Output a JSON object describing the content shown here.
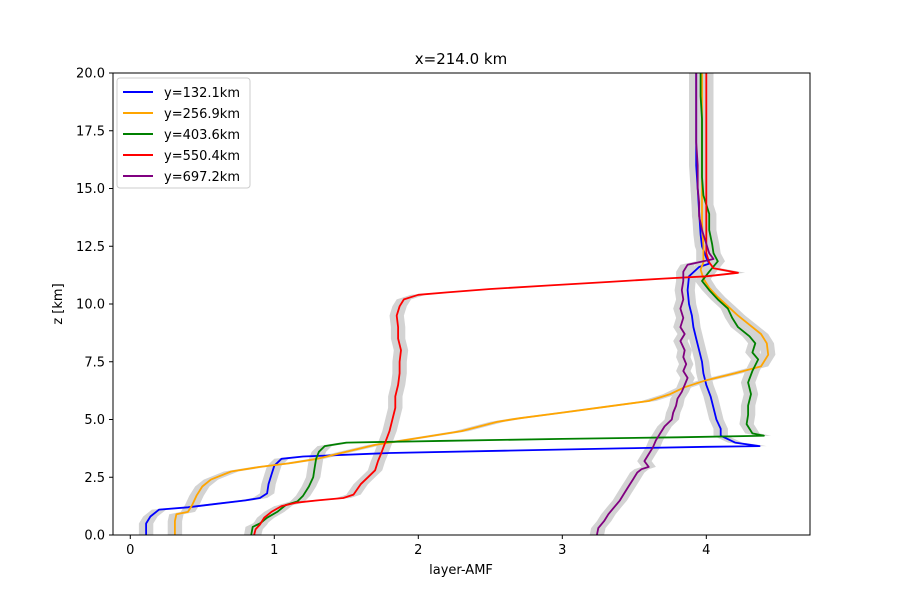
{
  "chart_data": {
    "type": "line",
    "title": "x=214.0 km",
    "xlabel": "layer-AMF",
    "ylabel": "z [km]",
    "xlim": [
      -0.12,
      4.72
    ],
    "ylim": [
      0,
      20
    ],
    "xticks": [
      0,
      1,
      2,
      3,
      4
    ],
    "yticks": [
      0.0,
      2.5,
      5.0,
      7.5,
      10.0,
      12.5,
      15.0,
      17.5,
      20.0
    ],
    "xtick_labels": [
      "0",
      "1",
      "2",
      "3",
      "4"
    ],
    "ytick_labels": [
      "0.0",
      "2.5",
      "5.0",
      "7.5",
      "10.0",
      "12.5",
      "15.0",
      "17.5",
      "20.0"
    ],
    "grid": false,
    "legend_position": "top-left",
    "uncertainty_band_color": "#d3d3d3",
    "series": [
      {
        "name": "y=132.1km",
        "color": "#0000ff",
        "points": [
          [
            0.11,
            0.0
          ],
          [
            0.11,
            0.5
          ],
          [
            0.14,
            0.8
          ],
          [
            0.2,
            1.1
          ],
          [
            0.4,
            1.2
          ],
          [
            0.6,
            1.35
          ],
          [
            0.8,
            1.5
          ],
          [
            0.9,
            1.6
          ],
          [
            0.95,
            1.8
          ],
          [
            0.96,
            2.2
          ],
          [
            0.98,
            2.6
          ],
          [
            1.0,
            3.0
          ],
          [
            1.05,
            3.3
          ],
          [
            1.2,
            3.4
          ],
          [
            1.8,
            3.55
          ],
          [
            2.6,
            3.65
          ],
          [
            3.4,
            3.75
          ],
          [
            4.0,
            3.82
          ],
          [
            4.37,
            3.85
          ],
          [
            4.2,
            4.0
          ],
          [
            4.1,
            4.3
          ],
          [
            4.1,
            4.6
          ],
          [
            4.07,
            5.0
          ],
          [
            4.05,
            5.5
          ],
          [
            4.03,
            6.0
          ],
          [
            4.0,
            6.5
          ],
          [
            3.98,
            7.0
          ],
          [
            3.97,
            7.5
          ],
          [
            3.95,
            8.0
          ],
          [
            3.93,
            8.5
          ],
          [
            3.91,
            9.0
          ],
          [
            3.9,
            9.5
          ],
          [
            3.88,
            10.0
          ],
          [
            3.87,
            10.6
          ],
          [
            3.88,
            11.2
          ],
          [
            3.95,
            11.6
          ],
          [
            4.02,
            11.75
          ],
          [
            4.0,
            12.0
          ],
          [
            3.97,
            12.5
          ],
          [
            3.96,
            13.0
          ],
          [
            3.95,
            14.0
          ],
          [
            3.94,
            15.0
          ],
          [
            3.93,
            16.0
          ],
          [
            3.93,
            17.0
          ],
          [
            3.93,
            18.0
          ],
          [
            3.93,
            19.0
          ],
          [
            3.93,
            20.0
          ]
        ]
      },
      {
        "name": "y=256.9km",
        "color": "#ffa500",
        "points": [
          [
            0.31,
            0.0
          ],
          [
            0.31,
            0.6
          ],
          [
            0.32,
            0.9
          ],
          [
            0.4,
            1.0
          ],
          [
            0.43,
            1.3
          ],
          [
            0.46,
            1.7
          ],
          [
            0.5,
            2.1
          ],
          [
            0.56,
            2.4
          ],
          [
            0.7,
            2.75
          ],
          [
            0.9,
            2.95
          ],
          [
            1.1,
            3.1
          ],
          [
            1.3,
            3.3
          ],
          [
            1.5,
            3.6
          ],
          [
            1.7,
            3.9
          ],
          [
            2.0,
            4.2
          ],
          [
            2.3,
            4.5
          ],
          [
            2.55,
            4.9
          ],
          [
            2.7,
            5.05
          ],
          [
            3.0,
            5.3
          ],
          [
            3.3,
            5.55
          ],
          [
            3.6,
            5.8
          ],
          [
            3.75,
            6.1
          ],
          [
            3.85,
            6.4
          ],
          [
            4.0,
            6.7
          ],
          [
            4.2,
            7.0
          ],
          [
            4.38,
            7.3
          ],
          [
            4.43,
            7.8
          ],
          [
            4.42,
            8.3
          ],
          [
            4.38,
            8.7
          ],
          [
            4.3,
            9.1
          ],
          [
            4.22,
            9.5
          ],
          [
            4.15,
            9.9
          ],
          [
            4.08,
            10.3
          ],
          [
            4.02,
            10.7
          ],
          [
            3.98,
            11.1
          ],
          [
            3.96,
            11.5
          ],
          [
            3.98,
            11.8
          ],
          [
            3.98,
            12.5
          ],
          [
            3.97,
            13.5
          ],
          [
            3.97,
            15.0
          ],
          [
            3.97,
            17.0
          ],
          [
            3.97,
            20.0
          ]
        ]
      },
      {
        "name": "y=403.6km",
        "color": "#008000",
        "points": [
          [
            0.84,
            0.0
          ],
          [
            0.85,
            0.35
          ],
          [
            0.9,
            0.5
          ],
          [
            0.95,
            0.75
          ],
          [
            1.02,
            1.0
          ],
          [
            1.08,
            1.3
          ],
          [
            1.16,
            1.45
          ],
          [
            1.2,
            1.7
          ],
          [
            1.24,
            2.1
          ],
          [
            1.27,
            2.5
          ],
          [
            1.28,
            2.9
          ],
          [
            1.29,
            3.3
          ],
          [
            1.31,
            3.6
          ],
          [
            1.35,
            3.85
          ],
          [
            1.5,
            4.0
          ],
          [
            2.2,
            4.08
          ],
          [
            3.0,
            4.16
          ],
          [
            3.8,
            4.23
          ],
          [
            4.4,
            4.3
          ],
          [
            4.32,
            4.4
          ],
          [
            4.28,
            4.8
          ],
          [
            4.29,
            5.2
          ],
          [
            4.29,
            5.6
          ],
          [
            4.31,
            6.1
          ],
          [
            4.29,
            6.6
          ],
          [
            4.32,
            7.1
          ],
          [
            4.36,
            7.6
          ],
          [
            4.32,
            7.9
          ],
          [
            4.34,
            8.3
          ],
          [
            4.3,
            8.6
          ],
          [
            4.22,
            9.0
          ],
          [
            4.18,
            9.4
          ],
          [
            4.15,
            9.8
          ],
          [
            4.08,
            10.2
          ],
          [
            4.02,
            10.6
          ],
          [
            3.97,
            11.0
          ],
          [
            4.02,
            11.4
          ],
          [
            4.08,
            11.85
          ],
          [
            4.05,
            12.2
          ],
          [
            4.04,
            12.6
          ],
          [
            4.02,
            13.2
          ],
          [
            4.02,
            13.9
          ],
          [
            4.0,
            14.3
          ],
          [
            3.98,
            14.7
          ],
          [
            3.97,
            15.5
          ],
          [
            3.97,
            16.5
          ],
          [
            3.97,
            18.0
          ],
          [
            3.96,
            19.0
          ],
          [
            3.96,
            20.0
          ]
        ]
      },
      {
        "name": "y=550.4km",
        "color": "#ff0000",
        "points": [
          [
            0.86,
            0.0
          ],
          [
            0.87,
            0.25
          ],
          [
            0.9,
            0.45
          ],
          [
            0.93,
            0.75
          ],
          [
            0.98,
            1.0
          ],
          [
            1.05,
            1.25
          ],
          [
            1.15,
            1.4
          ],
          [
            1.3,
            1.5
          ],
          [
            1.48,
            1.6
          ],
          [
            1.55,
            1.75
          ],
          [
            1.6,
            2.2
          ],
          [
            1.65,
            2.5
          ],
          [
            1.7,
            2.8
          ],
          [
            1.72,
            3.2
          ],
          [
            1.74,
            3.5
          ],
          [
            1.77,
            4.0
          ],
          [
            1.8,
            4.5
          ],
          [
            1.82,
            5.0
          ],
          [
            1.84,
            5.5
          ],
          [
            1.84,
            6.0
          ],
          [
            1.86,
            6.5
          ],
          [
            1.87,
            7.0
          ],
          [
            1.87,
            7.5
          ],
          [
            1.88,
            8.0
          ],
          [
            1.86,
            8.5
          ],
          [
            1.86,
            9.0
          ],
          [
            1.85,
            9.5
          ],
          [
            1.87,
            9.9
          ],
          [
            1.9,
            10.2
          ],
          [
            2.0,
            10.4
          ],
          [
            2.2,
            10.5
          ],
          [
            2.5,
            10.65
          ],
          [
            2.9,
            10.8
          ],
          [
            3.3,
            10.95
          ],
          [
            3.7,
            11.1
          ],
          [
            4.0,
            11.2
          ],
          [
            4.22,
            11.35
          ],
          [
            4.05,
            11.55
          ],
          [
            4.02,
            11.8
          ],
          [
            4.0,
            12.2
          ],
          [
            4.0,
            13.0
          ],
          [
            4.0,
            14.0
          ],
          [
            4.0,
            15.0
          ],
          [
            4.0,
            16.0
          ],
          [
            4.0,
            17.0
          ],
          [
            4.0,
            18.0
          ],
          [
            4.0,
            19.0
          ],
          [
            4.0,
            20.0
          ]
        ]
      },
      {
        "name": "y=697.2km",
        "color": "#800080",
        "points": [
          [
            3.24,
            0.0
          ],
          [
            3.25,
            0.3
          ],
          [
            3.29,
            0.6
          ],
          [
            3.32,
            0.9
          ],
          [
            3.36,
            1.2
          ],
          [
            3.4,
            1.5
          ],
          [
            3.43,
            1.8
          ],
          [
            3.46,
            2.1
          ],
          [
            3.49,
            2.4
          ],
          [
            3.52,
            2.7
          ],
          [
            3.55,
            2.85
          ],
          [
            3.6,
            2.95
          ],
          [
            3.57,
            3.2
          ],
          [
            3.6,
            3.5
          ],
          [
            3.63,
            3.8
          ],
          [
            3.65,
            4.1
          ],
          [
            3.68,
            4.4
          ],
          [
            3.71,
            4.7
          ],
          [
            3.76,
            5.0
          ],
          [
            3.77,
            5.3
          ],
          [
            3.79,
            5.6
          ],
          [
            3.8,
            5.9
          ],
          [
            3.83,
            6.2
          ],
          [
            3.85,
            6.5
          ],
          [
            3.87,
            6.8
          ],
          [
            3.84,
            7.1
          ],
          [
            3.86,
            7.4
          ],
          [
            3.84,
            7.7
          ],
          [
            3.85,
            8.0
          ],
          [
            3.82,
            8.4
          ],
          [
            3.85,
            8.7
          ],
          [
            3.82,
            9.0
          ],
          [
            3.84,
            9.4
          ],
          [
            3.82,
            9.8
          ],
          [
            3.84,
            10.2
          ],
          [
            3.83,
            10.6
          ],
          [
            3.84,
            11.0
          ],
          [
            3.84,
            11.4
          ],
          [
            3.87,
            11.7
          ],
          [
            3.98,
            11.85
          ],
          [
            4.05,
            11.95
          ],
          [
            4.02,
            12.2
          ],
          [
            4.0,
            12.6
          ],
          [
            3.97,
            13.2
          ],
          [
            3.95,
            13.8
          ],
          [
            3.95,
            14.4
          ],
          [
            3.94,
            15.0
          ],
          [
            3.94,
            16.0
          ],
          [
            3.93,
            17.0
          ],
          [
            3.93,
            18.0
          ],
          [
            3.93,
            19.0
          ],
          [
            3.93,
            20.0
          ]
        ]
      }
    ]
  }
}
